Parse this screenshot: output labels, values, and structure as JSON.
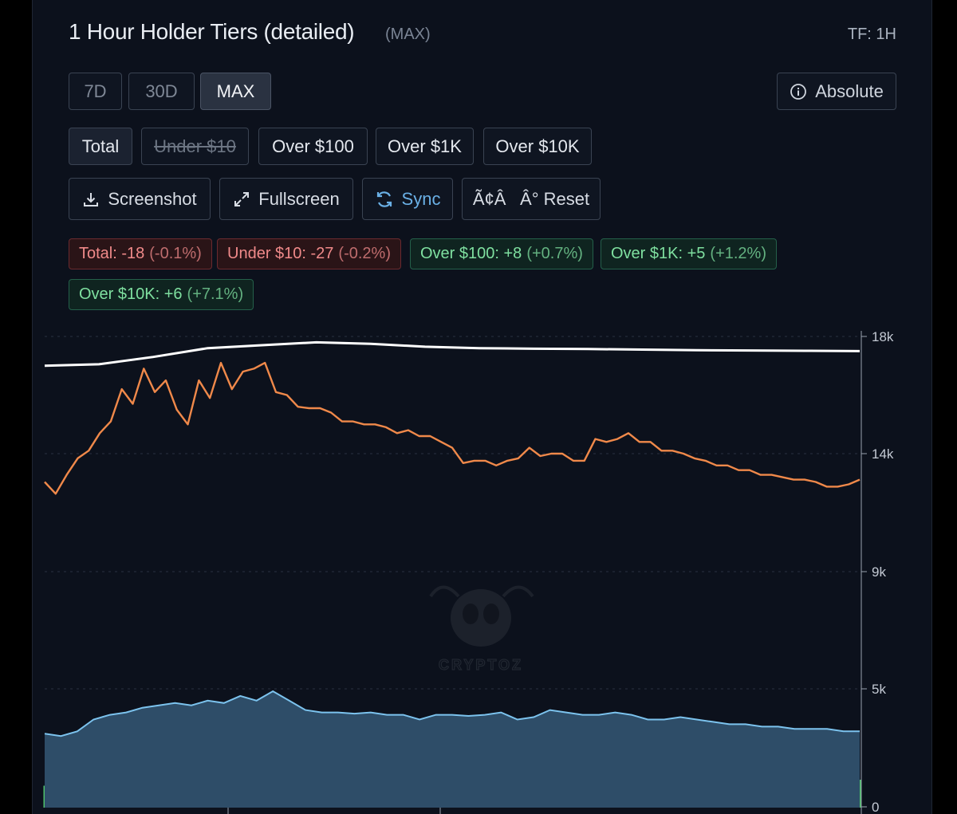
{
  "header": {
    "title": "1 Hour Holder Tiers (detailed)",
    "subtitle": "(MAX)",
    "timeframe": "TF: 1H"
  },
  "range_tabs": [
    {
      "label": "7D",
      "active": false
    },
    {
      "label": "30D",
      "active": false
    },
    {
      "label": "MAX",
      "active": true
    }
  ],
  "mode_button": {
    "label": "Absolute",
    "icon": "info-icon"
  },
  "tier_filters": [
    {
      "label": "Total",
      "enabled": true
    },
    {
      "label": "Under $10",
      "enabled": false
    },
    {
      "label": "Over $100",
      "enabled": true
    },
    {
      "label": "Over $1K",
      "enabled": true
    },
    {
      "label": "Over $10K",
      "enabled": true
    }
  ],
  "actions": [
    {
      "label": "Screenshot",
      "icon": "download-icon"
    },
    {
      "label": "Fullscreen",
      "icon": "expand-icon"
    },
    {
      "label": "Sync",
      "icon": "refresh-icon"
    },
    {
      "label": "Ã¢ÂÂ° Reset",
      "icon": ""
    }
  ],
  "change_chips": [
    {
      "label": "Total: -18",
      "pct": "(-0.1%)",
      "sign": "neg"
    },
    {
      "label": "Under $10: -27",
      "pct": "(-0.2%)",
      "sign": "neg"
    },
    {
      "label": "Over $100: +8",
      "pct": "(+0.7%)",
      "sign": "pos"
    },
    {
      "label": "Over $1K: +5",
      "pct": "(+1.2%)",
      "sign": "pos"
    },
    {
      "label": "Over $10K: +6",
      "pct": "(+7.1%)",
      "sign": "pos"
    }
  ],
  "watermark": "CRYPTOZ",
  "colors": {
    "total": "#ffffff",
    "under10": "#f0894a",
    "over100": "#7cc3ee",
    "over100_fill": "#2e4d68",
    "bars": "#4fc16c",
    "grid": "#2a3140",
    "axis_text": "#c3c9d3",
    "negative": "#f08a8a",
    "positive": "#7fe0a0"
  },
  "chart_data": {
    "type": "line",
    "y_axis_ticks": [
      "18k",
      "14k",
      "9k",
      "5k",
      "0"
    ],
    "ylim": [
      0,
      18000
    ],
    "grid": true,
    "series": [
      {
        "name": "Total",
        "values": [
          17000,
          17050,
          17300,
          17600,
          17700,
          17800,
          17750,
          17650,
          17600,
          17580,
          17570,
          17550,
          17530,
          17520,
          17510,
          17500
        ]
      },
      {
        "name": "Under $10",
        "values": [
          12800,
          12300,
          13100,
          13800,
          14100,
          14700,
          15100,
          16200,
          15700,
          16900,
          16100,
          16500,
          15500,
          15000,
          16500,
          15900,
          17100,
          16200,
          16800,
          16900,
          17100,
          16100,
          16000,
          15600,
          15550,
          15550,
          15400,
          15100,
          15100,
          15000,
          15000,
          14900,
          14700,
          14800,
          14600,
          14600,
          14400,
          14200,
          13600,
          13700,
          13700,
          13500,
          13700,
          13800,
          14200,
          13900,
          14000,
          14000,
          13700,
          13700,
          14500,
          14400,
          14500,
          14700,
          14400,
          14400,
          14100,
          14100,
          14000,
          13800,
          13700,
          13500,
          13500,
          13300,
          13300,
          13100,
          13100,
          13000,
          12900,
          12900,
          12800,
          12600,
          12600,
          12700,
          12900
        ]
      },
      {
        "name": "Over $100",
        "values": [
          3100,
          3000,
          3200,
          3700,
          3900,
          4000,
          4200,
          4300,
          4400,
          4300,
          4500,
          4400,
          4700,
          4500,
          4900,
          4500,
          4100,
          4000,
          4000,
          3950,
          4000,
          3900,
          3900,
          3700,
          3900,
          3900,
          3850,
          3900,
          4000,
          3700,
          3800,
          4100,
          4000,
          3900,
          3900,
          4000,
          3900,
          3700,
          3700,
          3800,
          3700,
          3600,
          3500,
          3500,
          3400,
          3400,
          3300,
          3300,
          3300,
          3200,
          3200
        ]
      },
      {
        "name": "Over $10K",
        "values": [
          0.55,
          0.6,
          0.58,
          0.65,
          0.6,
          0.7,
          0.62,
          0.68,
          0.75,
          0.7,
          0.8,
          0.65,
          0.7,
          0.72,
          0.68,
          0.74,
          0.85,
          0.7,
          0.66,
          0.7,
          0.64,
          0.7,
          0.66,
          0.7,
          0.62,
          0.66,
          0.7,
          0.64,
          0.68,
          0.7,
          0.66,
          0.7,
          0.64,
          0.62,
          0.66,
          0.7,
          0.66,
          0.64,
          0.68,
          0.72,
          0.66,
          0.7,
          0.64,
          0.66,
          0.7,
          0.68,
          0.72,
          0.66,
          0.7,
          0.68,
          0.7,
          0.66,
          0.68,
          0.7,
          0.72,
          0.66,
          0.7,
          0.68,
          0.66,
          0.7,
          0.68,
          0.72,
          0.66,
          0.68,
          0.7
        ]
      }
    ]
  }
}
